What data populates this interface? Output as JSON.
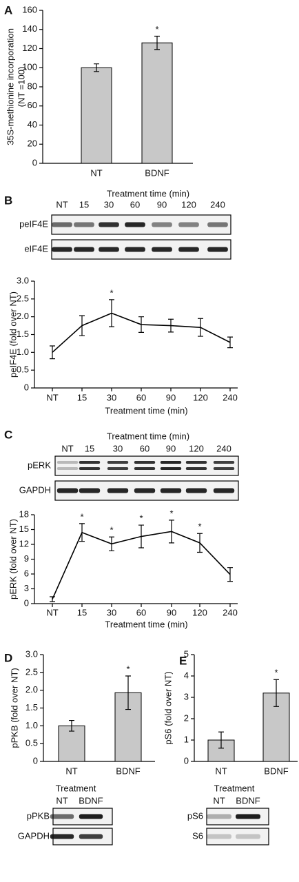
{
  "chart_data": [
    {
      "type": "bar",
      "panel_label": "A",
      "ylabel": [
        "35S-methionine incorporation",
        "(NT =100)"
      ],
      "categories": [
        "NT",
        "BDNF"
      ],
      "values": [
        100,
        126
      ],
      "errors": [
        4,
        7
      ],
      "color": "#c8c8c8",
      "significant": [
        false,
        true
      ],
      "marker": "*",
      "ylim": [
        0,
        160
      ],
      "yticks": [
        0,
        20,
        40,
        60,
        80,
        100,
        120,
        140,
        160
      ]
    },
    {
      "type": "line",
      "panel_label": "B",
      "ylabel": "peIF4E (fold over NT)",
      "xlabel": "Treatment time (min)",
      "categories": [
        "NT",
        "15",
        "30",
        "60",
        "90",
        "120",
        "240"
      ],
      "values": [
        1.0,
        1.75,
        2.1,
        1.78,
        1.75,
        1.7,
        1.28
      ],
      "errors": [
        0.18,
        0.28,
        0.38,
        0.22,
        0.18,
        0.25,
        0.15
      ],
      "color": "#000000",
      "significant": [
        false,
        false,
        true,
        false,
        false,
        false,
        false
      ],
      "marker": "*",
      "ylim": [
        0,
        3
      ],
      "yticks": [
        0,
        0.5,
        {
          "value": 1,
          "label": "1.0"
        },
        1.5,
        {
          "value": 2,
          "label": "2.0"
        },
        2.5,
        {
          "value": 3,
          "label": "3.0"
        }
      ],
      "blot_rows": [
        "peIF4E",
        "eIF4E"
      ]
    },
    {
      "type": "line",
      "panel_label": "C",
      "ylabel": "pERK (fold over NT)",
      "xlabel": "Treatment time (min)",
      "categories": [
        "NT",
        "15",
        "30",
        "60",
        "90",
        "120",
        "240"
      ],
      "values": [
        0.9,
        14.4,
        12.1,
        13.6,
        14.6,
        12.3,
        5.9
      ],
      "errors": [
        0.5,
        1.8,
        1.4,
        2.3,
        2.3,
        1.9,
        1.4
      ],
      "color": "#000000",
      "significant": [
        false,
        true,
        true,
        true,
        true,
        true,
        false
      ],
      "marker": "*",
      "ylim": [
        0,
        18
      ],
      "yticks": [
        0,
        3,
        6,
        9,
        12,
        15,
        18
      ],
      "blot_rows": [
        "pERK",
        "GAPDH"
      ]
    },
    {
      "type": "bar",
      "panel_label": "D",
      "ylabel": "pPKB (fold over NT)",
      "categories": [
        "NT",
        "BDNF"
      ],
      "values": [
        1.0,
        1.93
      ],
      "errors": [
        0.15,
        0.47
      ],
      "color": "#c8c8c8",
      "significant": [
        false,
        true
      ],
      "marker": "*",
      "ylim": [
        0,
        3
      ],
      "yticks": [
        0,
        0.5,
        {
          "value": 1,
          "label": "1.0"
        },
        1.5,
        {
          "value": 2,
          "label": "2.0"
        },
        2.5,
        {
          "value": 3,
          "label": "3.0"
        }
      ],
      "blot_header": "Treatment",
      "blot_rows": [
        "pPKB",
        "GAPDH"
      ]
    },
    {
      "type": "bar",
      "panel_label": "E",
      "ylabel": "pS6 (fold over NT)",
      "categories": [
        "NT",
        "BDNF"
      ],
      "values": [
        1.0,
        3.2
      ],
      "errors": [
        0.38,
        0.63
      ],
      "color": "#c8c8c8",
      "significant": [
        false,
        true
      ],
      "marker": "*",
      "ylim": [
        0,
        5
      ],
      "yticks": [
        0,
        1,
        2,
        3,
        4,
        5
      ],
      "blot_header": "Treatment",
      "blot_rows": [
        "pS6",
        "S6"
      ]
    }
  ]
}
